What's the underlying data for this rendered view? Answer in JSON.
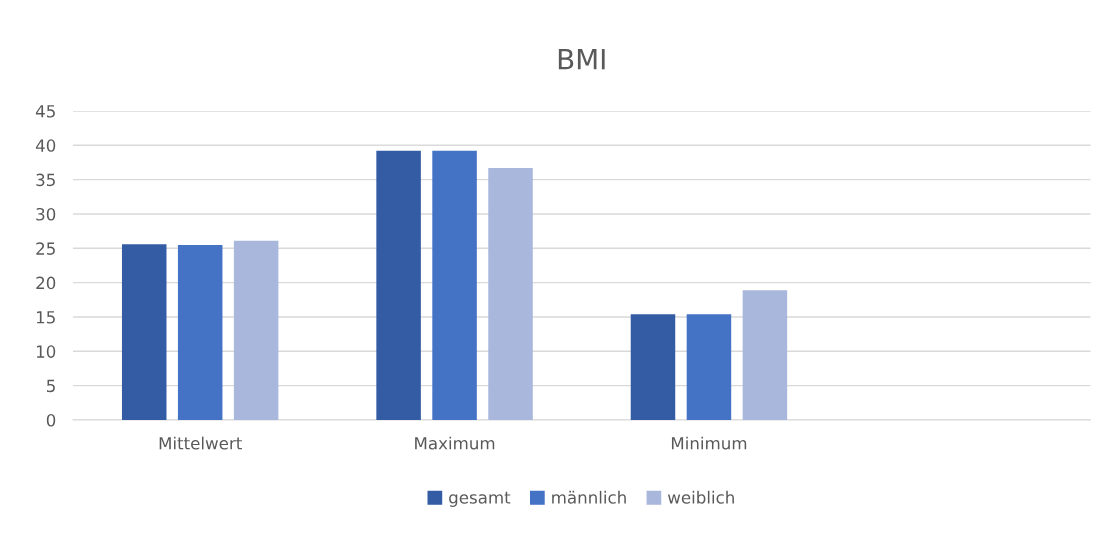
{
  "chart_data": {
    "type": "bar",
    "title": "BMI",
    "categories": [
      "Mittelwert",
      "Maximum",
      "Minimum",
      null
    ],
    "series": [
      {
        "name": "gesamt",
        "color": "#335ca4",
        "values": [
          25.6,
          39.2,
          15.4,
          null
        ]
      },
      {
        "name": "männlich",
        "color": "#4472c4",
        "values": [
          25.5,
          39.2,
          15.4,
          null
        ]
      },
      {
        "name": "weiblich",
        "color": "#a9b7dc",
        "values": [
          26.1,
          36.7,
          18.9,
          null
        ]
      }
    ],
    "ylim": [
      0,
      45
    ],
    "yticks": [
      0,
      5,
      10,
      15,
      20,
      25,
      30,
      35,
      40,
      45
    ],
    "grid": "y",
    "legend": "bottom"
  }
}
